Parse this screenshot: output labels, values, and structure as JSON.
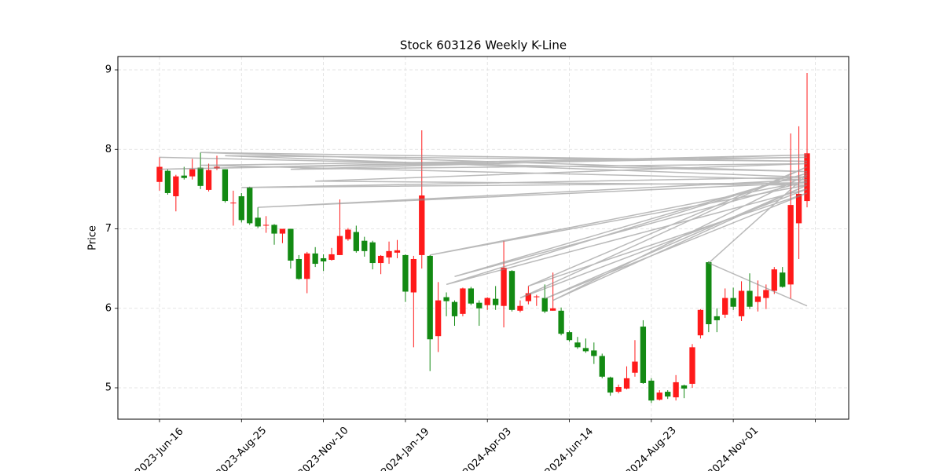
{
  "chart_data": {
    "type": "candlestick",
    "title": "Stock 603126 Weekly K-Line",
    "ylabel": "Price",
    "up_color": "#ff1a1a",
    "down_color": "#138a13",
    "grid": true,
    "xlim": [
      -5.08,
      84.08
    ],
    "ylim": [
      4.605,
      9.168
    ],
    "yticks": [
      5,
      6,
      7,
      8,
      9
    ],
    "xticks": [
      {
        "value": 0,
        "label": "2023-Jun-16"
      },
      {
        "value": 10,
        "label": "2023-Aug-25"
      },
      {
        "value": 20,
        "label": "2023-Nov-10"
      },
      {
        "value": 30,
        "label": "2024-Jan-19"
      },
      {
        "value": 40,
        "label": "2024-Apr-03"
      },
      {
        "value": 50,
        "label": "2024-Jun-14"
      },
      {
        "value": 60,
        "label": "2024-Aug-23"
      },
      {
        "value": 70,
        "label": "2024-Nov-01"
      },
      {
        "value": 80,
        "label": null
      }
    ],
    "open": [
      7.59,
      7.73,
      7.41,
      7.67,
      7.66,
      7.77,
      7.49,
      7.76,
      7.75,
      7.32,
      7.41,
      7.52,
      7.14,
      7.04,
      7.05,
      6.94,
      7.0,
      6.62,
      6.37,
      6.69,
      6.63,
      6.61,
      6.67,
      6.87,
      6.96,
      6.85,
      6.83,
      6.57,
      6.64,
      6.7,
      6.67,
      6.2,
      6.67,
      6.66,
      5.65,
      6.14,
      6.08,
      5.93,
      6.25,
      6.07,
      6.04,
      6.12,
      6.03,
      6.47,
      5.97,
      6.09,
      6.14,
      6.13,
      5.97,
      5.97,
      5.7,
      5.57,
      5.5,
      5.47,
      5.4,
      5.13,
      4.95,
      4.99,
      5.19,
      5.77,
      5.09,
      4.85,
      4.95,
      4.88,
      5.03,
      5.05,
      5.66,
      6.58,
      5.9,
      5.92,
      6.13,
      5.9,
      6.22,
      6.08,
      6.13,
      6.22,
      6.45,
      6.3,
      7.07,
      7.35
    ],
    "close": [
      7.78,
      7.45,
      7.66,
      7.64,
      7.75,
      7.54,
      7.74,
      7.78,
      7.35,
      7.33,
      7.11,
      7.07,
      7.03,
      7.05,
      6.94,
      7.0,
      6.6,
      6.37,
      6.69,
      6.56,
      6.59,
      6.68,
      6.91,
      6.99,
      6.72,
      6.72,
      6.57,
      6.66,
      6.72,
      6.73,
      6.21,
      6.62,
      7.42,
      5.61,
      6.1,
      6.09,
      5.9,
      6.25,
      6.06,
      6.0,
      6.13,
      6.04,
      6.51,
      5.98,
      6.03,
      6.19,
      6.15,
      5.96,
      6.0,
      5.68,
      5.6,
      5.51,
      5.46,
      5.4,
      5.14,
      4.94,
      5.01,
      5.12,
      5.33,
      5.06,
      4.84,
      4.94,
      4.89,
      5.07,
      4.99,
      5.51,
      5.98,
      5.8,
      5.85,
      6.13,
      6.02,
      6.22,
      6.02,
      6.15,
      6.23,
      6.49,
      6.27,
      7.3,
      7.44,
      7.95
    ],
    "high": [
      7.9,
      7.75,
      7.68,
      7.78,
      7.88,
      7.96,
      7.82,
      7.92,
      7.75,
      7.48,
      7.45,
      7.53,
      7.27,
      7.16,
      7.06,
      7.0,
      7.0,
      6.67,
      6.71,
      6.77,
      6.68,
      6.76,
      7.37,
      7.01,
      7.04,
      6.9,
      6.85,
      6.67,
      6.84,
      6.86,
      6.68,
      6.66,
      8.24,
      6.67,
      6.33,
      6.2,
      6.1,
      6.26,
      6.27,
      6.1,
      6.14,
      6.28,
      6.85,
      6.48,
      6.1,
      6.28,
      6.17,
      6.3,
      6.45,
      6.01,
      5.72,
      5.64,
      5.62,
      5.57,
      5.43,
      5.14,
      5.04,
      5.27,
      5.6,
      5.85,
      5.12,
      4.97,
      4.97,
      5.16,
      5.04,
      5.55,
      5.99,
      6.59,
      6.0,
      6.25,
      6.26,
      6.34,
      6.44,
      6.35,
      6.3,
      6.52,
      6.52,
      8.2,
      8.29,
      8.96
    ],
    "low": [
      7.48,
      7.43,
      7.22,
      7.62,
      7.62,
      7.5,
      7.47,
      7.74,
      7.33,
      7.04,
      7.08,
      7.05,
      7.01,
      6.95,
      6.8,
      6.82,
      6.5,
      6.36,
      6.19,
      6.52,
      6.47,
      6.6,
      6.67,
      6.85,
      6.7,
      6.65,
      6.49,
      6.43,
      6.56,
      6.63,
      6.08,
      5.51,
      6.5,
      5.21,
      5.45,
      5.9,
      5.78,
      5.9,
      6.04,
      5.78,
      5.98,
      5.98,
      5.76,
      5.96,
      5.95,
      6.05,
      6.03,
      5.94,
      5.97,
      5.66,
      5.58,
      5.49,
      5.44,
      5.3,
      5.12,
      4.9,
      4.93,
      4.98,
      5.14,
      5.05,
      4.81,
      4.84,
      4.86,
      4.84,
      4.87,
      5.0,
      5.62,
      5.7,
      5.7,
      5.88,
      5.98,
      5.84,
      5.99,
      5.96,
      5.99,
      6.18,
      6.26,
      6.12,
      6.62,
      7.27
    ],
    "categories": [
      "2023-Jun-16",
      null,
      null,
      null,
      null,
      null,
      null,
      null,
      null,
      null,
      "2023-Aug-25",
      null,
      null,
      null,
      null,
      null,
      null,
      null,
      null,
      null,
      "2023-Nov-10",
      null,
      null,
      null,
      null,
      null,
      null,
      null,
      null,
      null,
      "2024-Jan-19",
      null,
      null,
      null,
      null,
      null,
      null,
      null,
      null,
      null,
      "2024-Apr-03",
      null,
      null,
      null,
      null,
      null,
      null,
      null,
      null,
      null,
      "2024-Jun-14",
      null,
      null,
      null,
      null,
      null,
      null,
      null,
      null,
      null,
      "2024-Aug-23",
      null,
      null,
      null,
      null,
      null,
      null,
      null,
      null,
      null,
      "2024-Nov-01",
      null,
      null,
      null,
      null,
      null,
      null,
      null,
      null,
      null
    ],
    "overlay": {
      "color": "#8c8c8c",
      "x": [
        0,
        79,
        5,
        79,
        8,
        79,
        10,
        79,
        12,
        79,
        5,
        79,
        0,
        79,
        16,
        79,
        19,
        79,
        33,
        79,
        36,
        79,
        35,
        79,
        44,
        79,
        45,
        79,
        47,
        79,
        48,
        79,
        67,
        79
      ],
      "y": [
        7.9,
        7.72,
        7.96,
        7.85,
        7.92,
        7.65,
        7.52,
        7.58,
        7.27,
        7.62,
        7.8,
        7.9,
        7.75,
        7.93,
        7.75,
        7.82,
        7.6,
        7.55,
        6.67,
        7.6,
        6.4,
        7.7,
        6.3,
        7.5,
        6.13,
        7.78,
        6.28,
        7.45,
        6.12,
        7.55,
        6.1,
        7.68,
        6.57,
        6.03
      ]
    }
  }
}
